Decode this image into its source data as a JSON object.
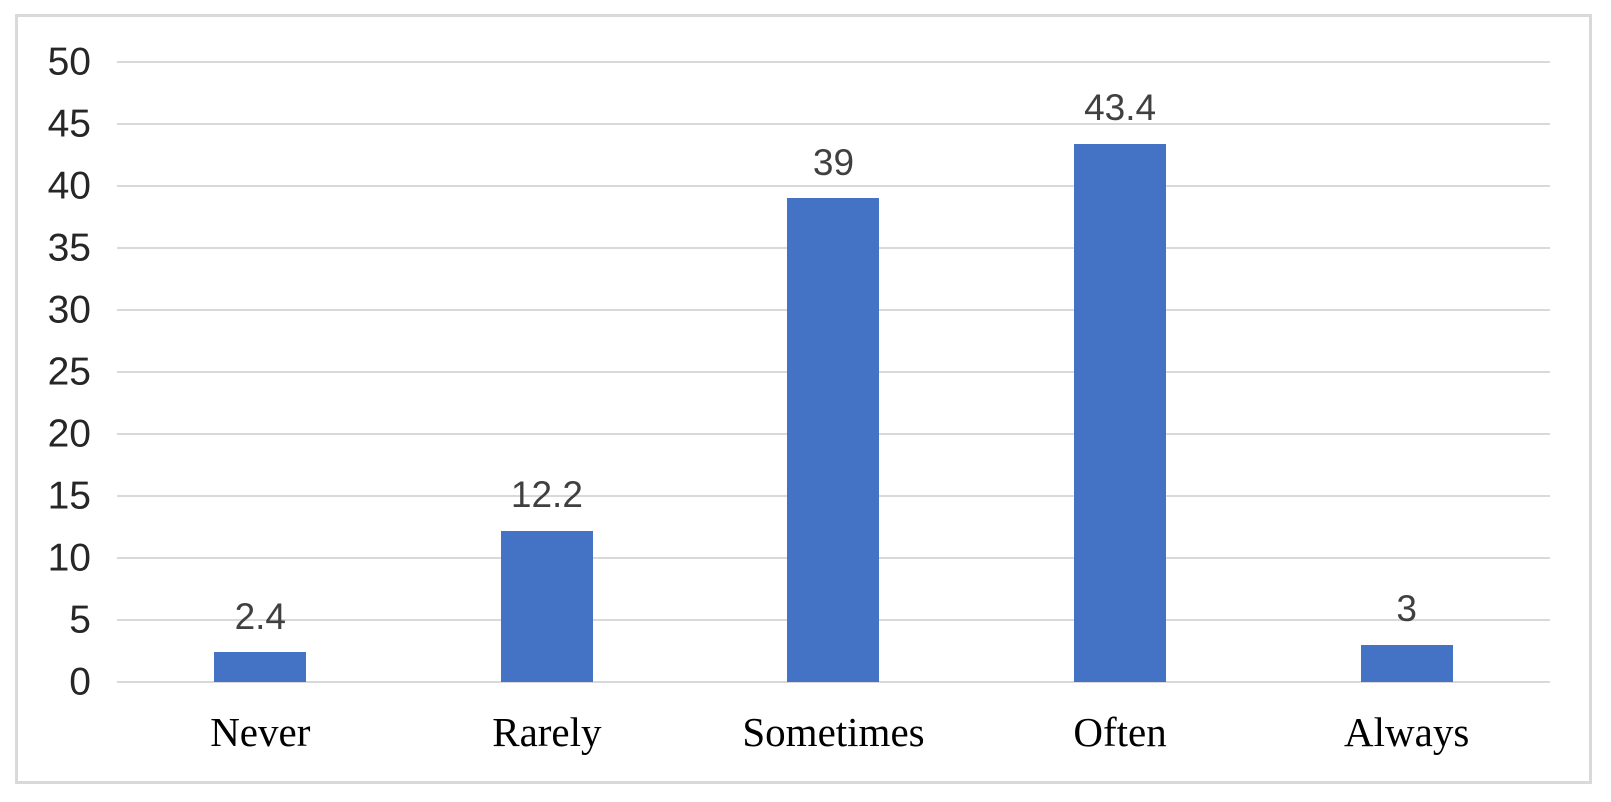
{
  "chart_data": {
    "type": "bar",
    "title": "",
    "xlabel": "",
    "ylabel": "",
    "categories": [
      "Never",
      "Rarely",
      "Sometimes",
      "Often",
      "Always"
    ],
    "values": [
      2.4,
      12.2,
      39,
      43.4,
      3
    ],
    "value_labels": [
      "2.4",
      "12.2",
      "39",
      "43.4",
      "3"
    ],
    "ylim": [
      0,
      50
    ],
    "ytick_step": 5,
    "yticks": [
      0,
      5,
      10,
      15,
      20,
      25,
      30,
      35,
      40,
      45,
      50
    ],
    "grid": true,
    "legend": "none",
    "colors": {
      "bar": "#4472C4",
      "gridline": "#D9D9D9",
      "frame_border": "#D9D9D9",
      "value_label": "#404040",
      "y_tick_label": "#262626",
      "x_category_label": "#000000",
      "background": "#FFFFFF"
    }
  }
}
